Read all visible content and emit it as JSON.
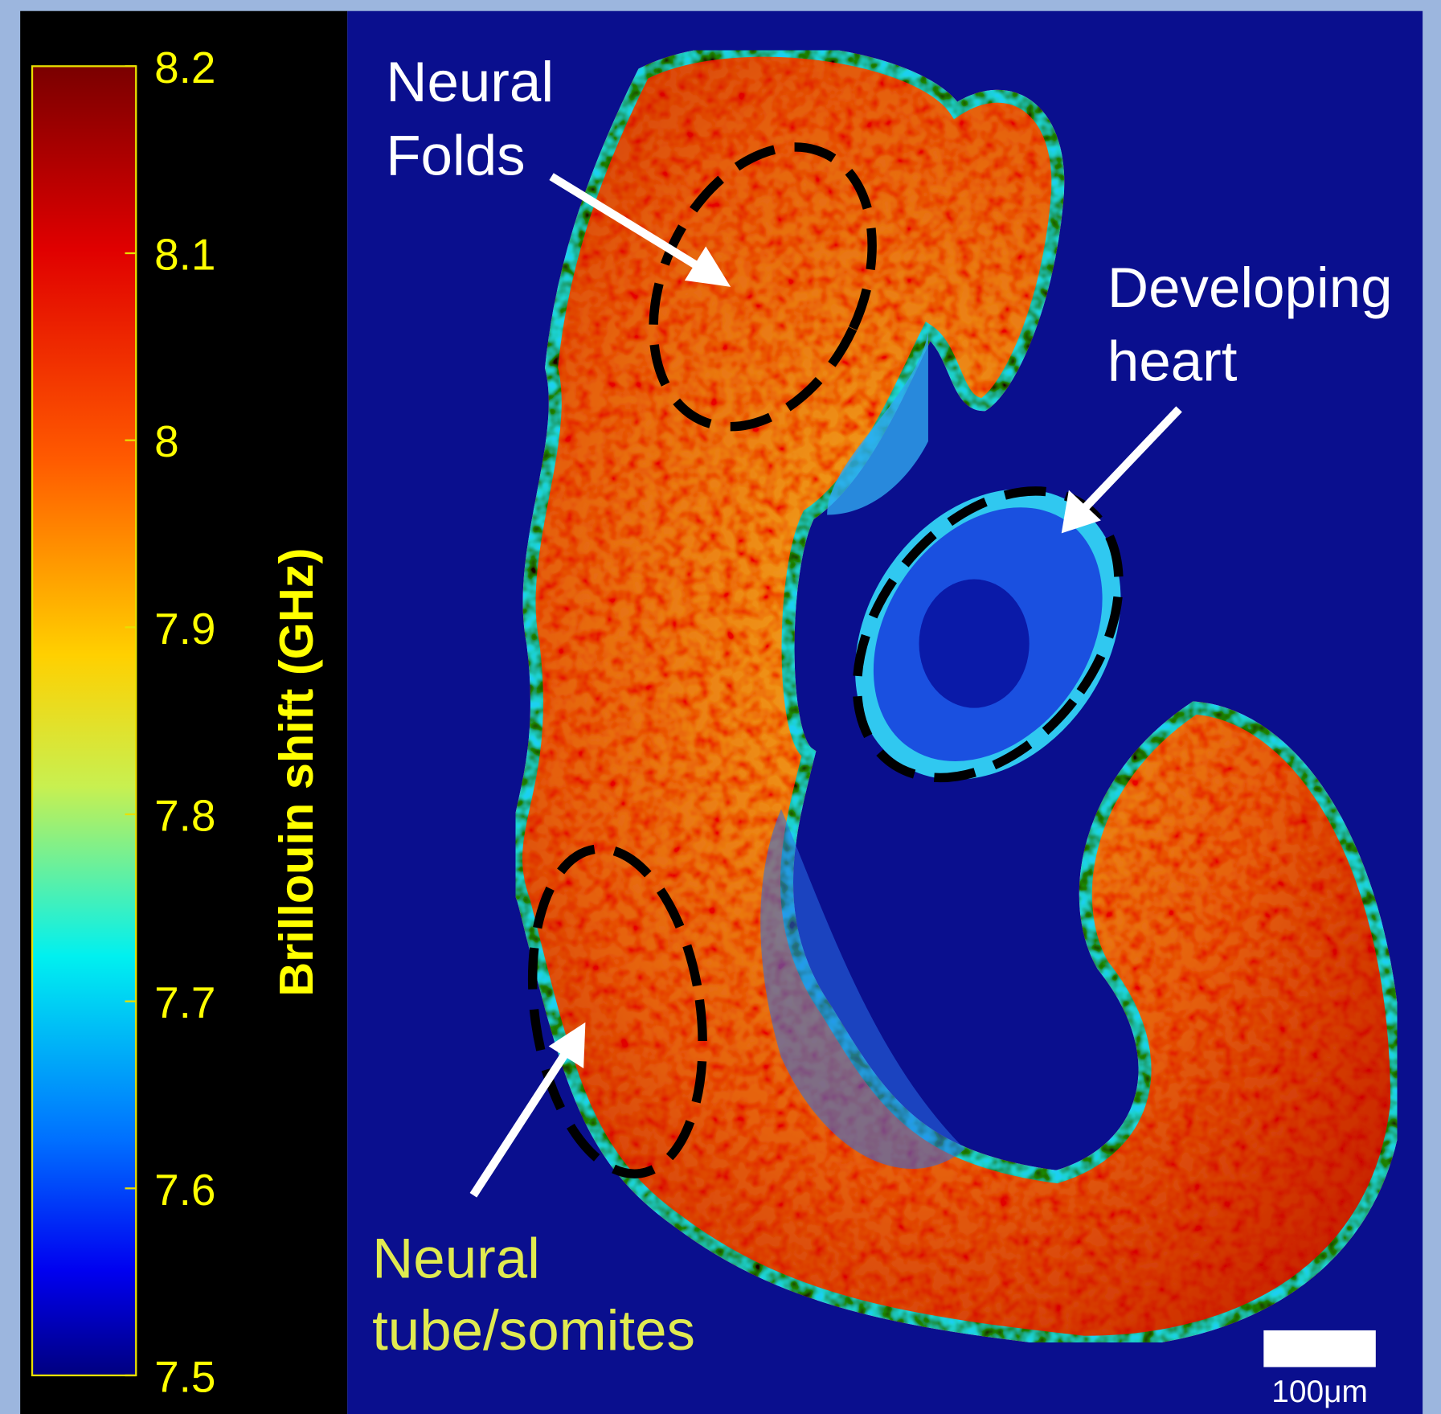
{
  "colorbar": {
    "label": "Brillouin shift (GHz)",
    "range": [
      7.5,
      8.2
    ],
    "ticks": [
      8.2,
      8.1,
      8,
      7.9,
      7.8,
      7.7,
      7.6,
      7.5
    ]
  },
  "annotations": [
    {
      "lines": [
        "Neural",
        "Folds"
      ]
    },
    {
      "lines": [
        "Developing",
        "heart"
      ]
    },
    {
      "lines": [
        "Neural",
        "tube/somites"
      ]
    }
  ],
  "scale_bar": {
    "label": "100μm"
  }
}
